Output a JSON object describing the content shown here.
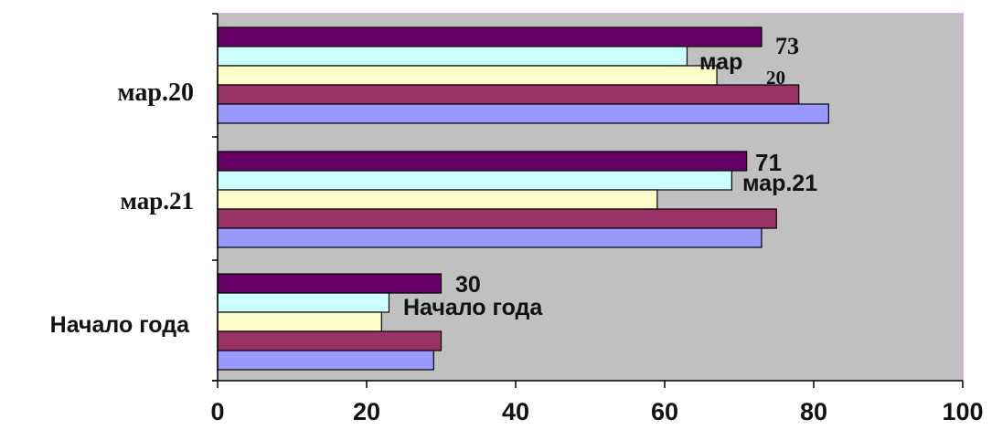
{
  "chart_data": {
    "type": "bar",
    "orientation": "horizontal",
    "categories": [
      "мар.20",
      "мар.21",
      "Начало года"
    ],
    "series": [
      {
        "color": "#660066",
        "values": [
          73,
          71,
          30
        ]
      },
      {
        "color": "#CCFFFF",
        "values": [
          63,
          69,
          23
        ]
      },
      {
        "color": "#FFFFCC",
        "values": [
          67,
          59,
          22
        ]
      },
      {
        "color": "#993366",
        "values": [
          78,
          75,
          30
        ]
      },
      {
        "color": "#9999FF",
        "values": [
          82,
          73,
          29
        ]
      }
    ],
    "xlim": [
      0,
      100
    ],
    "xticks": [
      "0",
      "20",
      "40",
      "60",
      "80",
      "100"
    ],
    "plot_background": "#C0C0C0",
    "grid": false,
    "annotations": [
      {
        "category": "мар.20",
        "value_text": "73",
        "label_text": "мар",
        "extra_text": "20"
      },
      {
        "category": "мар.21",
        "value_text": "71",
        "label_text": "мар.21"
      },
      {
        "category": "Начало года",
        "value_text": "30",
        "label_text": "Начало года"
      }
    ]
  }
}
